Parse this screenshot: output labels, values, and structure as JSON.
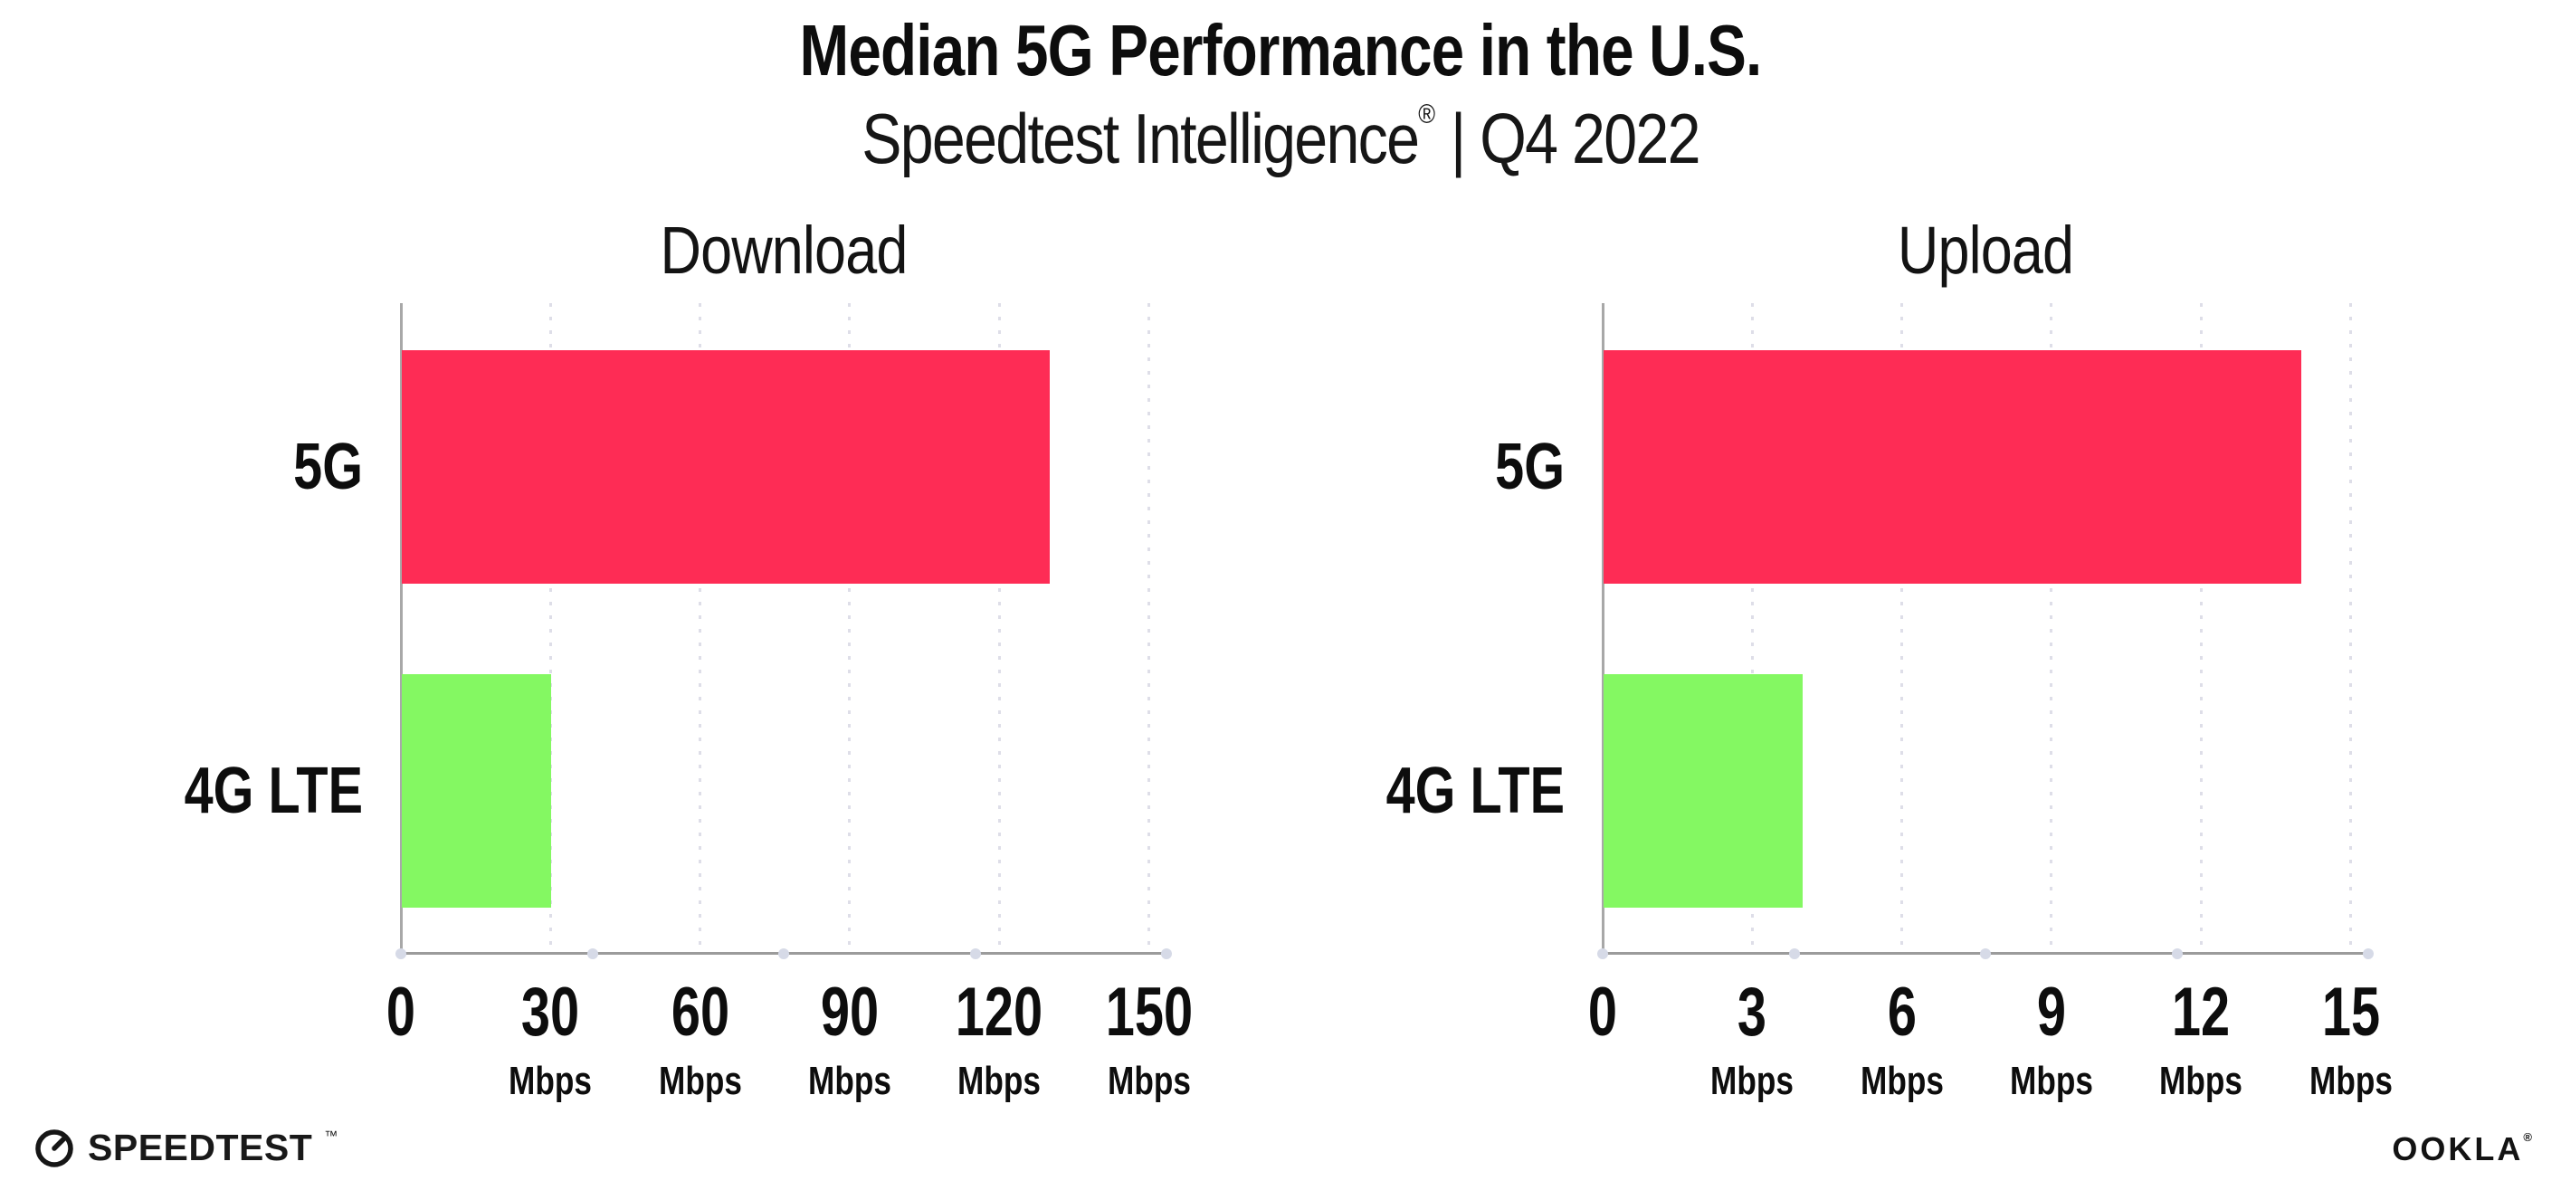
{
  "header": {
    "title": "Median 5G Performance in the U.S.",
    "subtitle_brand": "Speedtest Intelligence",
    "subtitle_reg": "®",
    "subtitle_rest": "| Q4 2022"
  },
  "chart_data": [
    {
      "type": "bar",
      "orientation": "horizontal",
      "title": "Download",
      "categories": [
        "5G",
        "4G LTE"
      ],
      "values": [
        130,
        30
      ],
      "unit": "Mbps",
      "xlabel": "",
      "ylabel": "",
      "xlim": [
        0,
        150
      ],
      "xticks": [
        0,
        30,
        60,
        90,
        120,
        150
      ],
      "bar_colors": [
        "#FE2C55",
        "#84F862"
      ],
      "grid": "vertical-dotted",
      "legend": "none"
    },
    {
      "type": "bar",
      "orientation": "horizontal",
      "title": "Upload",
      "categories": [
        "5G",
        "4G LTE"
      ],
      "values": [
        14,
        4
      ],
      "unit": "Mbps",
      "xlabel": "",
      "ylabel": "",
      "xlim": [
        0,
        15
      ],
      "xticks": [
        0,
        3,
        6,
        9,
        12,
        15
      ],
      "bar_colors": [
        "#FE2C55",
        "#84F862"
      ],
      "grid": "vertical-dotted",
      "legend": "none"
    }
  ],
  "footer": {
    "speedtest_label": "SPEEDTEST",
    "speedtest_mark": "™",
    "ookla_label": "OOKLA",
    "ookla_mark": "®"
  },
  "colors": {
    "bar_5g": "#FE2C55",
    "bar_4g_lte": "#84F862",
    "axis_line": "#9b9b9b",
    "y_axis_line": "#a8a8a8",
    "gridline": "#dedee8",
    "axis_tick_dot": "#d6dae7",
    "text": "#0d0d0d",
    "background": "#ffffff"
  }
}
